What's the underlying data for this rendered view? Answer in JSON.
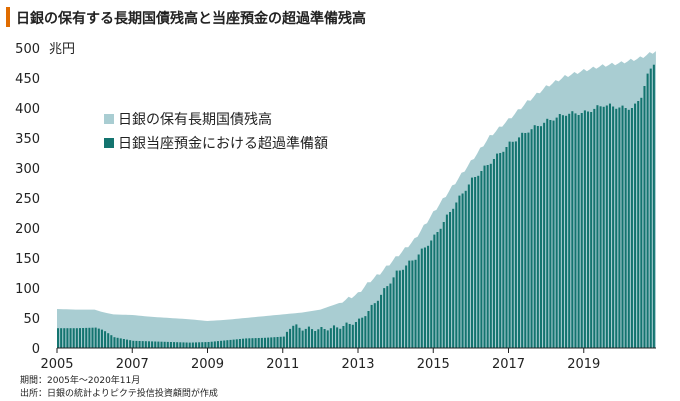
{
  "title": "日銀の保有する長期国債残高と当座預金の超過準備残高",
  "chart_data": {
    "type": "area",
    "y_unit": "兆円",
    "ylim": [
      0,
      500
    ],
    "yticks": [
      0,
      50,
      100,
      150,
      200,
      250,
      300,
      350,
      400,
      450,
      500
    ],
    "xlim": [
      2005,
      2020.92
    ],
    "xticks": [
      2005,
      2007,
      2009,
      2011,
      2013,
      2015,
      2017,
      2019
    ],
    "grid": false,
    "legend_position": "upper-left",
    "colors": {
      "bond": "#a9cdd2",
      "excess": "#13746f"
    },
    "series": [
      {
        "name": "日銀の保有長期国債残高",
        "kind": "area",
        "x": [
          2005,
          2005.5,
          2006,
          2006.2,
          2006.5,
          2007,
          2007.5,
          2008,
          2008.5,
          2009,
          2009.5,
          2010,
          2010.5,
          2011,
          2011.5,
          2012,
          2012.5,
          2013,
          2013.3,
          2013.6,
          2014,
          2014.5,
          2015,
          2015.5,
          2016,
          2016.5,
          2017,
          2017.5,
          2018,
          2018.5,
          2019,
          2019.5,
          2020,
          2020.5,
          2020.92
        ],
        "values": [
          65,
          64,
          64,
          60,
          56,
          55,
          52,
          50,
          48,
          45,
          47,
          50,
          53,
          56,
          59,
          64,
          75,
          90,
          110,
          125,
          150,
          180,
          225,
          268,
          310,
          352,
          380,
          410,
          435,
          452,
          462,
          470,
          475,
          483,
          495
        ]
      },
      {
        "name": "日銀当座預金における超過準備額",
        "kind": "bar",
        "x": [
          2005,
          2005.5,
          2006,
          2006.2,
          2006.5,
          2007,
          2007.5,
          2008,
          2008.5,
          2009,
          2009.5,
          2010,
          2010.5,
          2011,
          2011.2,
          2011.5,
          2012,
          2012.5,
          2013,
          2013.3,
          2013.6,
          2014,
          2014.5,
          2015,
          2015.5,
          2016,
          2016.5,
          2017,
          2017.5,
          2018,
          2018.5,
          2019,
          2019.5,
          2020,
          2020.3,
          2020.5,
          2020.7,
          2020.92
        ],
        "values": [
          33,
          33,
          34,
          30,
          18,
          12,
          11,
          10,
          9,
          10,
          13,
          16,
          17,
          19,
          38,
          32,
          31,
          35,
          45,
          65,
          90,
          125,
          150,
          185,
          235,
          280,
          310,
          340,
          362,
          378,
          390,
          392,
          405,
          400,
          400,
          420,
          460,
          485
        ]
      }
    ]
  },
  "footnotes": {
    "period": "期間：2005年～2020年11月",
    "source": "出所：日銀の統計よりピクテ投信投資顧問が作成"
  }
}
